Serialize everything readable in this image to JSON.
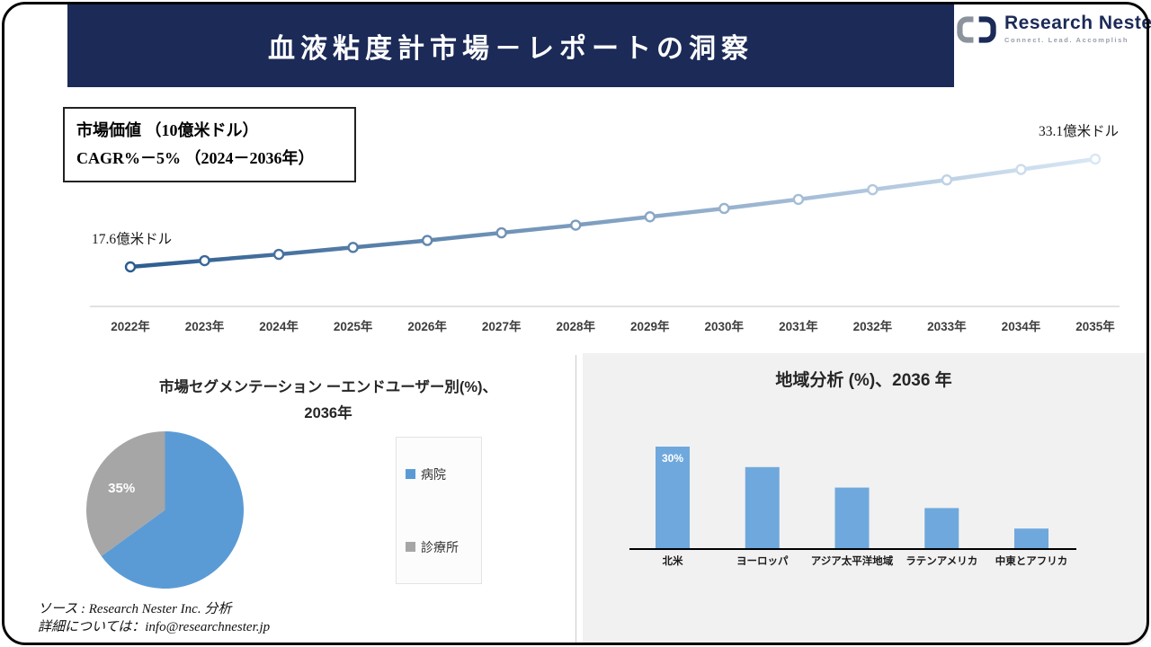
{
  "header": {
    "title": "血液粘度計市場－レポートの洞察"
  },
  "logo": {
    "brand": "Research Nester",
    "tagline": "Connect. Lead. Accomplish"
  },
  "market_box": {
    "line1": "市場価値 （10億米ドル）",
    "line2": "CAGR%－5% （2024－2036年）"
  },
  "footer": {
    "line1": "ソース : Research Nester Inc. 分析",
    "line2": "詳細については：info@researchnester.jp"
  },
  "colors": {
    "navy": "#1b2a57",
    "line_dark": "#2c5c8f",
    "line_light": "#d9e7f5",
    "pie_blue": "#5b9bd5",
    "pie_gray": "#a6a6a6",
    "bar_blue": "#6fa8dc",
    "panel_gray": "#f1f1f1"
  },
  "chart_data": [
    {
      "type": "line",
      "title": "市場価値 （10億米ドル）",
      "x": [
        "2022年",
        "2023年",
        "2024年",
        "2025年",
        "2026年",
        "2027年",
        "2028年",
        "2029年",
        "2030年",
        "2031年",
        "2032年",
        "2033年",
        "2034年",
        "2035年"
      ],
      "values": [
        17.6,
        18.5,
        19.4,
        20.4,
        21.4,
        22.5,
        23.6,
        24.8,
        26.0,
        27.3,
        28.7,
        30.1,
        31.6,
        33.1
      ],
      "start_label": "17.6億米ドル",
      "end_label": "33.1億米ドル",
      "cagr_note": "CAGR%－5% （2024－2036年）",
      "grid": false,
      "markers": true
    },
    {
      "type": "pie",
      "title_line1": "市場セグメンテーション ーエンドユーザー別(%)、",
      "title_line2": "2036年",
      "labels": [
        "病院",
        "診療所"
      ],
      "values": [
        65,
        35
      ],
      "colors": [
        "#5b9bd5",
        "#a6a6a6"
      ],
      "data_label": "35%",
      "legend_position": "right"
    },
    {
      "type": "bar",
      "title": "地域分析 (%)、2036 年",
      "categories": [
        "北米",
        "ヨーロッパ",
        "アジア太平洋地域",
        "ラテンアメリカ",
        "中東とアフリカ"
      ],
      "values": [
        30,
        24,
        18,
        12,
        6
      ],
      "data_label": "30%",
      "ylim": [
        0,
        33
      ],
      "grid": false
    }
  ]
}
